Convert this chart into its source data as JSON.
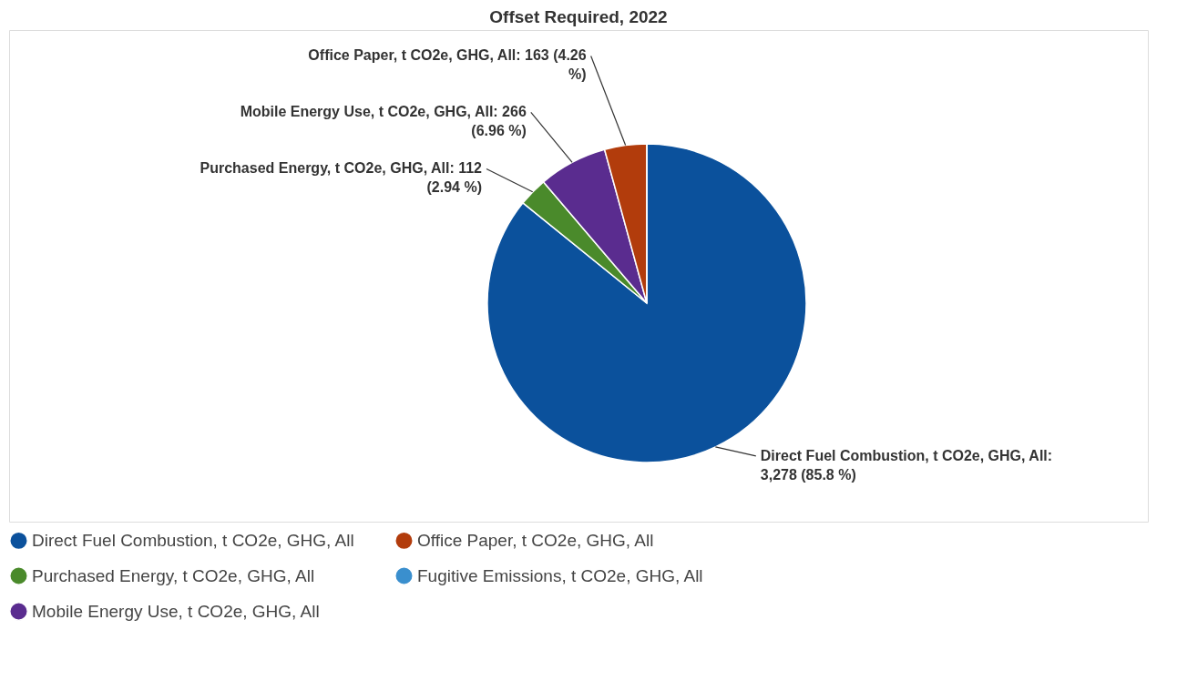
{
  "chart_data": {
    "type": "pie",
    "title": "Offset Required, 2022",
    "categories": [
      "Direct Fuel Combustion, t CO2e, GHG, All",
      "Purchased Energy, t CO2e, GHG, All",
      "Mobile Energy Use, t CO2e, GHG, All",
      "Office Paper, t CO2e, GHG, All",
      "Fugitive Emissions, t CO2e, GHG, All"
    ],
    "values": [
      3278,
      112,
      266,
      163,
      0
    ],
    "colors": [
      "#0b519c",
      "#4a8a2b",
      "#5a2c8f",
      "#b23c0c",
      "#3a8fce"
    ],
    "value_labels": [
      "Direct Fuel Combustion, t CO2e, GHG, All: 3,278 (85.8 %)",
      "Purchased Energy, t CO2e, GHG, All: 112 (2.94 %)",
      "Mobile Energy Use, t CO2e, GHG, All: 266 (6.96 %)",
      "Office Paper, t CO2e, GHG, All: 163 (4.26 %)",
      null
    ],
    "legend": "bottom"
  }
}
